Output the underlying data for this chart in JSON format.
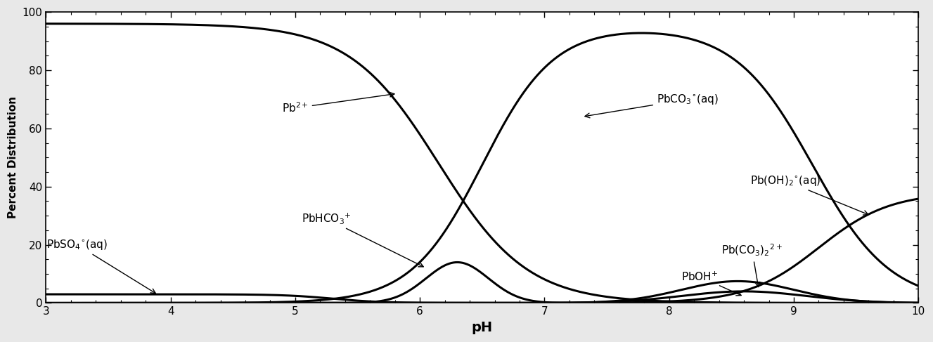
{
  "xlim": [
    3,
    10
  ],
  "ylim": [
    0,
    100
  ],
  "xlabel": "pH",
  "ylabel": "Percent Distribution",
  "xticks": [
    3,
    4,
    5,
    6,
    7,
    8,
    9,
    10
  ],
  "yticks": [
    0,
    20,
    40,
    60,
    80,
    100
  ],
  "plot_bg": "#ffffff",
  "fig_bg": "#e8e8e8",
  "line_color": "#000000",
  "line_width": 2.2
}
